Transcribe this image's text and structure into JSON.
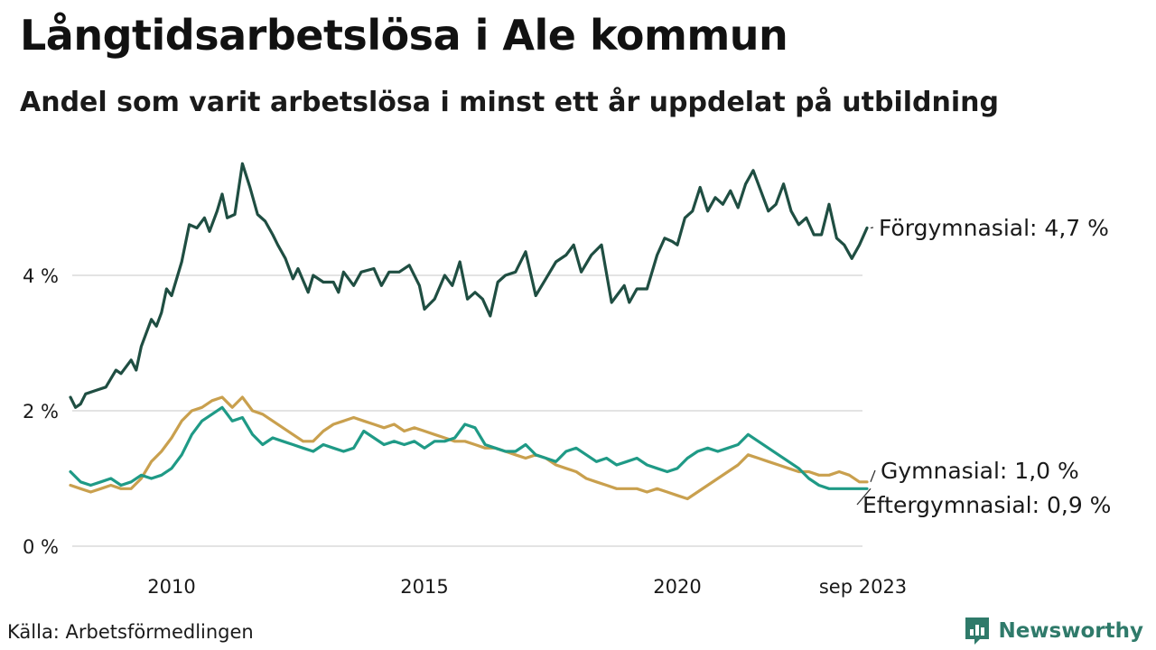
{
  "title": "Långtidsarbetslösa i Ale kommun",
  "subtitle": "Andel som varit arbetslösa i minst ett år uppdelat på utbildning",
  "source": "Källa: Arbetsförmedlingen",
  "brand": {
    "name": "Newsworthy",
    "icon": "bar-chart-icon",
    "color": "#2f7a6a"
  },
  "chart_data": {
    "type": "line",
    "title": "Långtidsarbetslösa i Ale kommun",
    "subtitle": "Andel som varit arbetslösa i minst ett år uppdelat på utbildning",
    "xlabel": "",
    "ylabel": "",
    "x_range": [
      2008.0,
      2023.75
    ],
    "ylim": [
      0,
      6
    ],
    "grid": true,
    "y_ticks": [
      {
        "value": 0,
        "label": "0 %"
      },
      {
        "value": 2,
        "label": "2 %"
      },
      {
        "value": 4,
        "label": "4 %"
      }
    ],
    "x_ticks": [
      {
        "value": 2010,
        "label": "2010"
      },
      {
        "value": 2015,
        "label": "2015"
      },
      {
        "value": 2020,
        "label": "2020"
      },
      {
        "value": 2023.67,
        "label": "sep 2023"
      }
    ],
    "series": [
      {
        "name": "Förgymnasial",
        "end_label": "Förgymnasial: 4,7 %",
        "color": "#1f4e42",
        "points": [
          [
            2008.0,
            2.2
          ],
          [
            2008.1,
            2.05
          ],
          [
            2008.2,
            2.1
          ],
          [
            2008.3,
            2.25
          ],
          [
            2008.5,
            2.3
          ],
          [
            2008.7,
            2.35
          ],
          [
            2008.9,
            2.6
          ],
          [
            2009.0,
            2.55
          ],
          [
            2009.2,
            2.75
          ],
          [
            2009.3,
            2.6
          ],
          [
            2009.4,
            2.95
          ],
          [
            2009.6,
            3.35
          ],
          [
            2009.7,
            3.25
          ],
          [
            2009.8,
            3.45
          ],
          [
            2009.9,
            3.8
          ],
          [
            2010.0,
            3.7
          ],
          [
            2010.2,
            4.2
          ],
          [
            2010.35,
            4.75
          ],
          [
            2010.5,
            4.7
          ],
          [
            2010.65,
            4.85
          ],
          [
            2010.75,
            4.65
          ],
          [
            2010.9,
            4.95
          ],
          [
            2011.0,
            5.2
          ],
          [
            2011.1,
            4.85
          ],
          [
            2011.25,
            4.9
          ],
          [
            2011.4,
            5.65
          ],
          [
            2011.55,
            5.3
          ],
          [
            2011.7,
            4.9
          ],
          [
            2011.85,
            4.8
          ],
          [
            2012.0,
            4.6
          ],
          [
            2012.1,
            4.45
          ],
          [
            2012.25,
            4.25
          ],
          [
            2012.4,
            3.95
          ],
          [
            2012.5,
            4.1
          ],
          [
            2012.7,
            3.75
          ],
          [
            2012.8,
            4.0
          ],
          [
            2013.0,
            3.9
          ],
          [
            2013.2,
            3.9
          ],
          [
            2013.3,
            3.75
          ],
          [
            2013.4,
            4.05
          ],
          [
            2013.6,
            3.85
          ],
          [
            2013.75,
            4.05
          ],
          [
            2014.0,
            4.1
          ],
          [
            2014.15,
            3.85
          ],
          [
            2014.3,
            4.05
          ],
          [
            2014.5,
            4.05
          ],
          [
            2014.7,
            4.15
          ],
          [
            2014.9,
            3.85
          ],
          [
            2015.0,
            3.5
          ],
          [
            2015.2,
            3.65
          ],
          [
            2015.4,
            4.0
          ],
          [
            2015.55,
            3.85
          ],
          [
            2015.7,
            4.2
          ],
          [
            2015.85,
            3.65
          ],
          [
            2016.0,
            3.75
          ],
          [
            2016.15,
            3.65
          ],
          [
            2016.3,
            3.4
          ],
          [
            2016.45,
            3.9
          ],
          [
            2016.6,
            4.0
          ],
          [
            2016.8,
            4.05
          ],
          [
            2017.0,
            4.35
          ],
          [
            2017.2,
            3.7
          ],
          [
            2017.4,
            3.95
          ],
          [
            2017.6,
            4.2
          ],
          [
            2017.8,
            4.3
          ],
          [
            2017.95,
            4.45
          ],
          [
            2018.1,
            4.05
          ],
          [
            2018.3,
            4.3
          ],
          [
            2018.5,
            4.45
          ],
          [
            2018.7,
            3.6
          ],
          [
            2018.8,
            3.7
          ],
          [
            2018.95,
            3.85
          ],
          [
            2019.05,
            3.6
          ],
          [
            2019.2,
            3.8
          ],
          [
            2019.4,
            3.8
          ],
          [
            2019.6,
            4.3
          ],
          [
            2019.75,
            4.55
          ],
          [
            2019.9,
            4.5
          ],
          [
            2020.0,
            4.45
          ],
          [
            2020.15,
            4.85
          ],
          [
            2020.3,
            4.95
          ],
          [
            2020.45,
            5.3
          ],
          [
            2020.6,
            4.95
          ],
          [
            2020.75,
            5.15
          ],
          [
            2020.9,
            5.05
          ],
          [
            2021.05,
            5.25
          ],
          [
            2021.2,
            5.0
          ],
          [
            2021.35,
            5.35
          ],
          [
            2021.5,
            5.55
          ],
          [
            2021.65,
            5.25
          ],
          [
            2021.8,
            4.95
          ],
          [
            2021.95,
            5.05
          ],
          [
            2022.1,
            5.35
          ],
          [
            2022.25,
            4.95
          ],
          [
            2022.4,
            4.75
          ],
          [
            2022.55,
            4.85
          ],
          [
            2022.7,
            4.6
          ],
          [
            2022.85,
            4.6
          ],
          [
            2023.0,
            5.05
          ],
          [
            2023.15,
            4.55
          ],
          [
            2023.3,
            4.45
          ],
          [
            2023.45,
            4.25
          ],
          [
            2023.6,
            4.45
          ],
          [
            2023.75,
            4.7
          ]
        ]
      },
      {
        "name": "Gymnasial",
        "end_label": "Gymnasial: 1,0 %",
        "color": "#c9a04e",
        "points": [
          [
            2008.0,
            0.9
          ],
          [
            2008.2,
            0.85
          ],
          [
            2008.4,
            0.8
          ],
          [
            2008.6,
            0.85
          ],
          [
            2008.8,
            0.9
          ],
          [
            2009.0,
            0.85
          ],
          [
            2009.2,
            0.85
          ],
          [
            2009.4,
            1.0
          ],
          [
            2009.6,
            1.25
          ],
          [
            2009.8,
            1.4
          ],
          [
            2010.0,
            1.6
          ],
          [
            2010.2,
            1.85
          ],
          [
            2010.4,
            2.0
          ],
          [
            2010.6,
            2.05
          ],
          [
            2010.8,
            2.15
          ],
          [
            2011.0,
            2.2
          ],
          [
            2011.2,
            2.05
          ],
          [
            2011.4,
            2.2
          ],
          [
            2011.6,
            2.0
          ],
          [
            2011.8,
            1.95
          ],
          [
            2012.0,
            1.85
          ],
          [
            2012.2,
            1.75
          ],
          [
            2012.4,
            1.65
          ],
          [
            2012.6,
            1.55
          ],
          [
            2012.8,
            1.55
          ],
          [
            2013.0,
            1.7
          ],
          [
            2013.2,
            1.8
          ],
          [
            2013.4,
            1.85
          ],
          [
            2013.6,
            1.9
          ],
          [
            2013.8,
            1.85
          ],
          [
            2014.0,
            1.8
          ],
          [
            2014.2,
            1.75
          ],
          [
            2014.4,
            1.8
          ],
          [
            2014.6,
            1.7
          ],
          [
            2014.8,
            1.75
          ],
          [
            2015.0,
            1.7
          ],
          [
            2015.2,
            1.65
          ],
          [
            2015.4,
            1.6
          ],
          [
            2015.6,
            1.55
          ],
          [
            2015.8,
            1.55
          ],
          [
            2016.0,
            1.5
          ],
          [
            2016.2,
            1.45
          ],
          [
            2016.4,
            1.45
          ],
          [
            2016.6,
            1.4
          ],
          [
            2016.8,
            1.35
          ],
          [
            2017.0,
            1.3
          ],
          [
            2017.2,
            1.35
          ],
          [
            2017.4,
            1.3
          ],
          [
            2017.6,
            1.2
          ],
          [
            2017.8,
            1.15
          ],
          [
            2018.0,
            1.1
          ],
          [
            2018.2,
            1.0
          ],
          [
            2018.4,
            0.95
          ],
          [
            2018.6,
            0.9
          ],
          [
            2018.8,
            0.85
          ],
          [
            2019.0,
            0.85
          ],
          [
            2019.2,
            0.85
          ],
          [
            2019.4,
            0.8
          ],
          [
            2019.6,
            0.85
          ],
          [
            2019.8,
            0.8
          ],
          [
            2020.0,
            0.75
          ],
          [
            2020.2,
            0.7
          ],
          [
            2020.4,
            0.8
          ],
          [
            2020.6,
            0.9
          ],
          [
            2020.8,
            1.0
          ],
          [
            2021.0,
            1.1
          ],
          [
            2021.2,
            1.2
          ],
          [
            2021.4,
            1.35
          ],
          [
            2021.6,
            1.3
          ],
          [
            2021.8,
            1.25
          ],
          [
            2022.0,
            1.2
          ],
          [
            2022.2,
            1.15
          ],
          [
            2022.4,
            1.1
          ],
          [
            2022.6,
            1.1
          ],
          [
            2022.8,
            1.05
          ],
          [
            2023.0,
            1.05
          ],
          [
            2023.2,
            1.1
          ],
          [
            2023.4,
            1.05
          ],
          [
            2023.6,
            0.95
          ],
          [
            2023.75,
            0.95
          ]
        ]
      },
      {
        "name": "Eftergymnasial",
        "end_label": "Eftergymnasial: 0,9 %",
        "color": "#1f9a86",
        "points": [
          [
            2008.0,
            1.1
          ],
          [
            2008.2,
            0.95
          ],
          [
            2008.4,
            0.9
          ],
          [
            2008.6,
            0.95
          ],
          [
            2008.8,
            1.0
          ],
          [
            2009.0,
            0.9
          ],
          [
            2009.2,
            0.95
          ],
          [
            2009.4,
            1.05
          ],
          [
            2009.6,
            1.0
          ],
          [
            2009.8,
            1.05
          ],
          [
            2010.0,
            1.15
          ],
          [
            2010.2,
            1.35
          ],
          [
            2010.4,
            1.65
          ],
          [
            2010.6,
            1.85
          ],
          [
            2010.8,
            1.95
          ],
          [
            2011.0,
            2.05
          ],
          [
            2011.2,
            1.85
          ],
          [
            2011.4,
            1.9
          ],
          [
            2011.6,
            1.65
          ],
          [
            2011.8,
            1.5
          ],
          [
            2012.0,
            1.6
          ],
          [
            2012.2,
            1.55
          ],
          [
            2012.4,
            1.5
          ],
          [
            2012.6,
            1.45
          ],
          [
            2012.8,
            1.4
          ],
          [
            2013.0,
            1.5
          ],
          [
            2013.2,
            1.45
          ],
          [
            2013.4,
            1.4
          ],
          [
            2013.6,
            1.45
          ],
          [
            2013.8,
            1.7
          ],
          [
            2014.0,
            1.6
          ],
          [
            2014.2,
            1.5
          ],
          [
            2014.4,
            1.55
          ],
          [
            2014.6,
            1.5
          ],
          [
            2014.8,
            1.55
          ],
          [
            2015.0,
            1.45
          ],
          [
            2015.2,
            1.55
          ],
          [
            2015.4,
            1.55
          ],
          [
            2015.6,
            1.6
          ],
          [
            2015.8,
            1.8
          ],
          [
            2016.0,
            1.75
          ],
          [
            2016.2,
            1.5
          ],
          [
            2016.4,
            1.45
          ],
          [
            2016.6,
            1.4
          ],
          [
            2016.8,
            1.4
          ],
          [
            2017.0,
            1.5
          ],
          [
            2017.2,
            1.35
          ],
          [
            2017.4,
            1.3
          ],
          [
            2017.6,
            1.25
          ],
          [
            2017.8,
            1.4
          ],
          [
            2018.0,
            1.45
          ],
          [
            2018.2,
            1.35
          ],
          [
            2018.4,
            1.25
          ],
          [
            2018.6,
            1.3
          ],
          [
            2018.8,
            1.2
          ],
          [
            2019.0,
            1.25
          ],
          [
            2019.2,
            1.3
          ],
          [
            2019.4,
            1.2
          ],
          [
            2019.6,
            1.15
          ],
          [
            2019.8,
            1.1
          ],
          [
            2020.0,
            1.15
          ],
          [
            2020.2,
            1.3
          ],
          [
            2020.4,
            1.4
          ],
          [
            2020.6,
            1.45
          ],
          [
            2020.8,
            1.4
          ],
          [
            2021.0,
            1.45
          ],
          [
            2021.2,
            1.5
          ],
          [
            2021.4,
            1.65
          ],
          [
            2021.6,
            1.55
          ],
          [
            2021.8,
            1.45
          ],
          [
            2022.0,
            1.35
          ],
          [
            2022.2,
            1.25
          ],
          [
            2022.4,
            1.15
          ],
          [
            2022.6,
            1.0
          ],
          [
            2022.8,
            0.9
          ],
          [
            2023.0,
            0.85
          ],
          [
            2023.2,
            0.85
          ],
          [
            2023.4,
            0.85
          ],
          [
            2023.6,
            0.85
          ],
          [
            2023.75,
            0.85
          ]
        ]
      }
    ]
  }
}
